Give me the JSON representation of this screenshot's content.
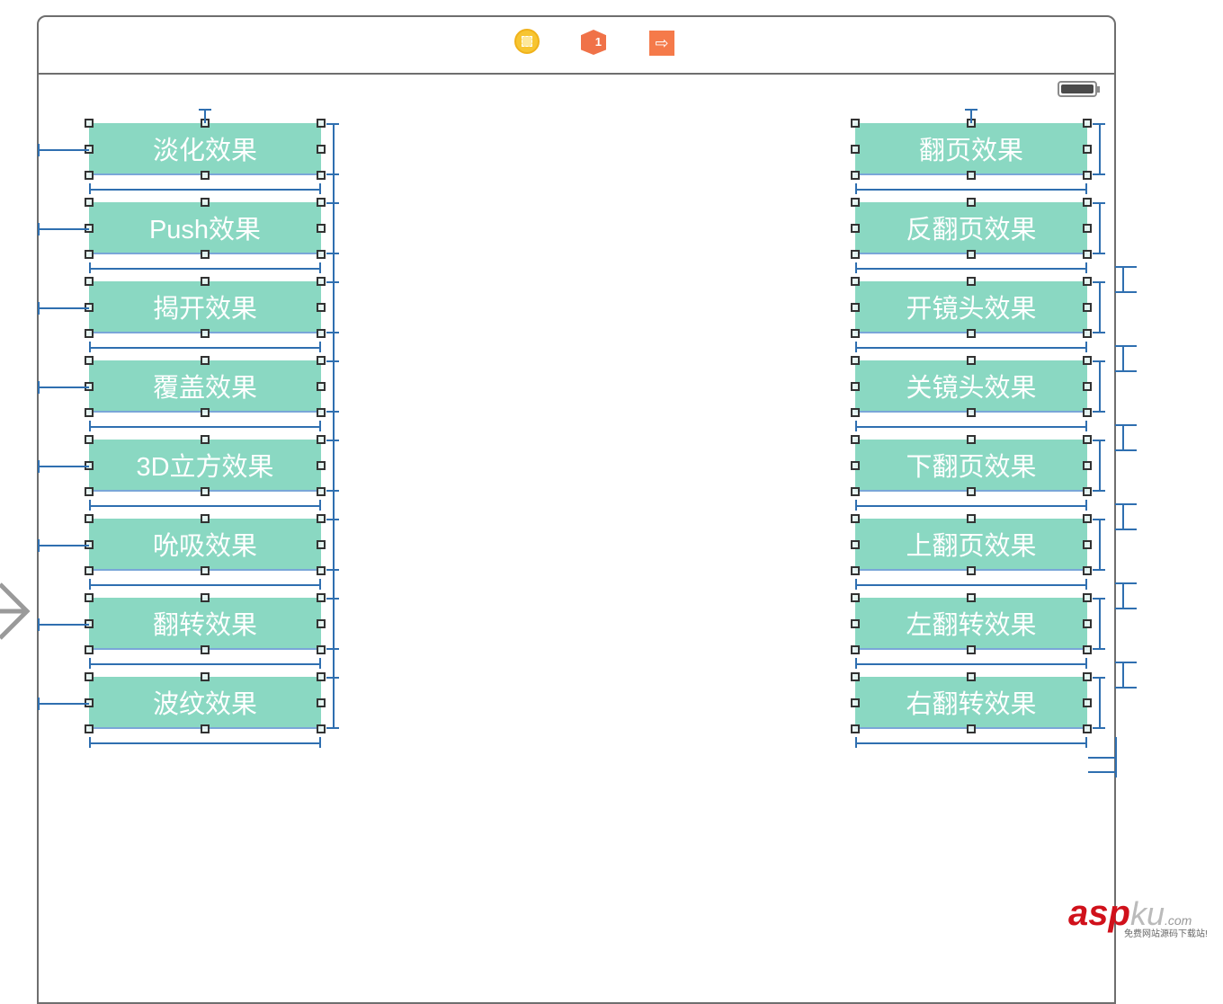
{
  "toolbar": {
    "icons": [
      "view-controller-icon",
      "first-responder-icon",
      "exit-icon"
    ],
    "first_responder_badge": "1"
  },
  "status_bar": {
    "battery": "battery-icon"
  },
  "left_buttons": [
    "淡化效果",
    "Push效果",
    "揭开效果",
    "覆盖效果",
    "3D立方效果",
    "吮吸效果",
    "翻转效果",
    "波纹效果"
  ],
  "right_buttons": [
    "翻页效果",
    "反翻页效果",
    "开镜头效果",
    "关镜头效果",
    "下翻页效果",
    "上翻页效果",
    "左翻转效果",
    "右翻转效果"
  ],
  "colors": {
    "button_bg": "#8ad8c2",
    "constraint": "#2f6fb0",
    "frame": "#6e6e6e"
  },
  "watermark": {
    "brand_red": "asp",
    "brand_gray": "ku",
    "tld": ".com",
    "tagline": "免费网站源码下载站!"
  }
}
